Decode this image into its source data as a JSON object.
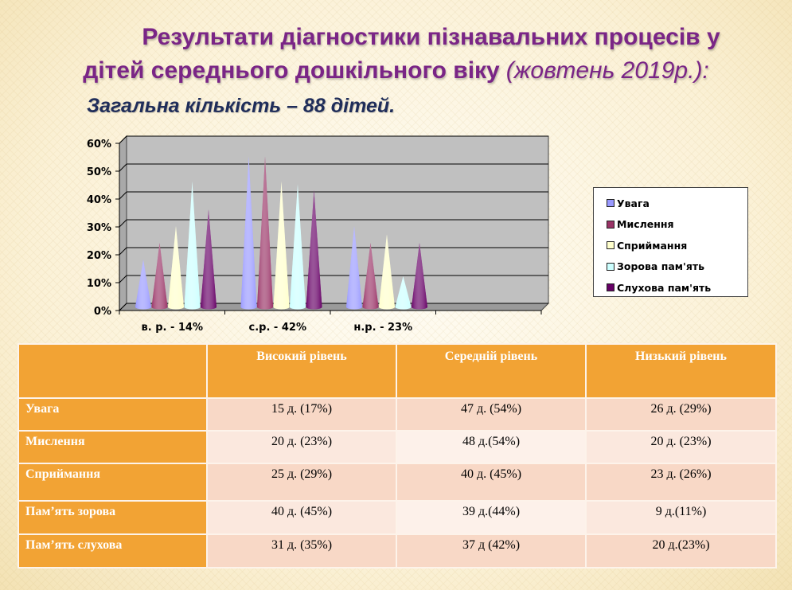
{
  "slide": {
    "title_line1": "Результати діагностики пізнавальних процесів у",
    "title_line2": "дітей середнього дошкільного віку",
    "title_date": "(жовтень 2019р.):",
    "subtitle": "Загальна кількість – 88 дітей."
  },
  "chart_data": {
    "type": "bar",
    "shape": "cone",
    "categories": [
      "в. р. - 14%",
      "с.р. - 42%",
      "н.р. - 23%"
    ],
    "series": [
      {
        "name": "Увага",
        "color": "#9999ff",
        "values": [
          17,
          54,
          29
        ]
      },
      {
        "name": "Мислення",
        "color": "#993366",
        "values": [
          23,
          54,
          23
        ]
      },
      {
        "name": "Сприймання",
        "color": "#ffffcc",
        "values": [
          29,
          45,
          26
        ]
      },
      {
        "name": "Зорова пам'ять",
        "color": "#ccffff",
        "values": [
          45,
          44,
          11
        ]
      },
      {
        "name": "Слухова пам'ять",
        "color": "#660066",
        "values": [
          35,
          42,
          23
        ]
      }
    ],
    "y_ticks": [
      "0%",
      "10%",
      "20%",
      "30%",
      "40%",
      "50%",
      "60%"
    ],
    "ylim": [
      0,
      60
    ],
    "grid": true,
    "legend_position": "right",
    "plot_background": "#c0c0c0"
  },
  "table": {
    "headers": [
      "",
      "Високий рівень",
      "Середній рівень",
      "Низький рівень"
    ],
    "rows": [
      {
        "label": "Увага",
        "cells": [
          "15 д. (17%)",
          "47 д. (54%)",
          "26 д. (29%)"
        ]
      },
      {
        "label": "Мислення",
        "cells": [
          "20 д. (23%)",
          "48 д.(54%)",
          "20 д. (23%)"
        ]
      },
      {
        "label": "Сприймання",
        "cells": [
          "25 д. (29%)",
          "40 д. (45%)",
          "23 д. (26%)"
        ]
      },
      {
        "label": "Пам’ять зорова",
        "cells": [
          "40 д. (45%)",
          "39 д.(44%)",
          "9 д.(11%)"
        ]
      },
      {
        "label": "Пам’ять слухова",
        "cells": [
          "31 д. (35%)",
          "37 д (42%)",
          "20 д.(23%)"
        ]
      }
    ]
  }
}
